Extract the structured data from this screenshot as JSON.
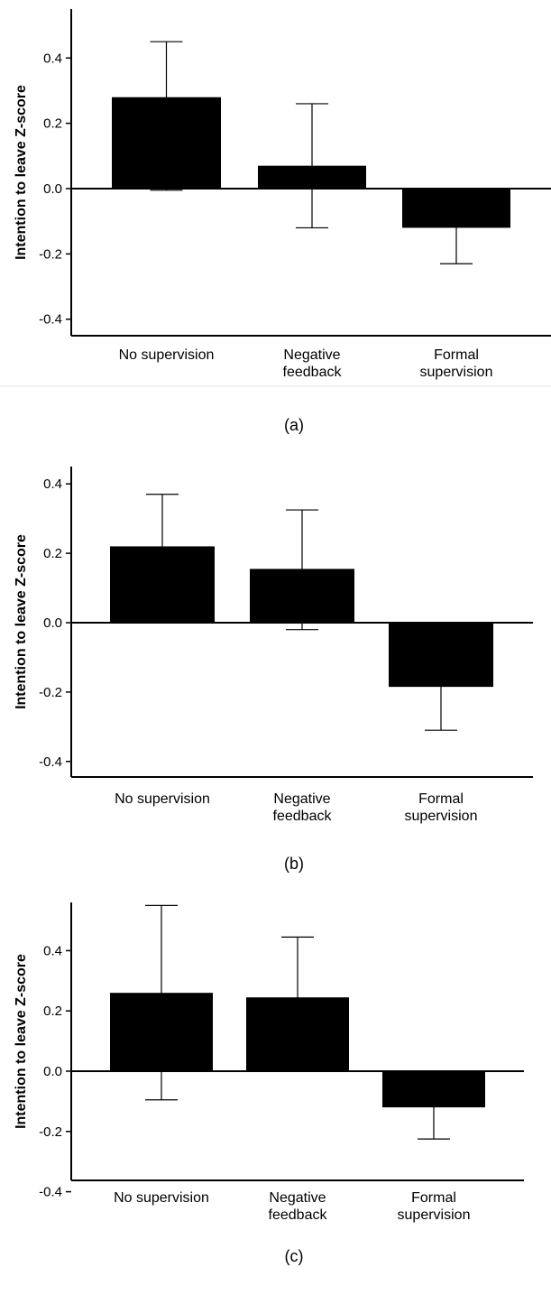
{
  "chart_data": [
    {
      "type": "bar",
      "panel": "(a)",
      "categories": [
        [
          "No supervision"
        ],
        [
          "Negative",
          "feedback"
        ],
        [
          "Formal",
          "supervision"
        ]
      ],
      "values": [
        0.28,
        0.07,
        -0.12
      ],
      "error_low": [
        -0.005,
        -0.12,
        -0.23
      ],
      "error_high": [
        0.45,
        0.26,
        -0.0
      ],
      "ylabel": "Intention to leave Z-score",
      "ylim": [
        -0.45,
        0.55
      ],
      "yticks": [
        0.4,
        0.2,
        0.0,
        -0.2,
        -0.4
      ],
      "ytick_labels": [
        "0.4",
        "0.2",
        "0.0",
        "-0.2",
        "-0.4"
      ],
      "grid": false
    },
    {
      "type": "bar",
      "panel": "(b)",
      "categories": [
        [
          "No supervision"
        ],
        [
          "Negative",
          "feedback"
        ],
        [
          "Formal",
          "supervision"
        ]
      ],
      "values": [
        0.22,
        0.155,
        -0.185
      ],
      "error_low": [
        0.0,
        -0.02,
        -0.31
      ],
      "error_high": [
        0.37,
        0.325,
        0.0
      ],
      "ylabel": "Intention to leave Z-score",
      "ylim": [
        -0.44,
        0.45
      ],
      "yticks": [
        0.4,
        0.2,
        0.0,
        -0.2,
        -0.4
      ],
      "ytick_labels": [
        "0.4",
        "0.2",
        "0.0",
        "-0.2",
        "-0.4"
      ],
      "grid": false
    },
    {
      "type": "bar",
      "panel": "(c)",
      "categories": [
        [
          "No supervision"
        ],
        [
          "Negative",
          "feedback"
        ],
        [
          "Formal",
          "supervision"
        ]
      ],
      "values": [
        0.26,
        0.245,
        -0.12
      ],
      "error_low": [
        -0.095,
        0.0,
        -0.225
      ],
      "error_high": [
        0.55,
        0.445,
        0.0
      ],
      "ylabel": "Intention to leave Z-score",
      "ylim": [
        -0.45,
        0.56
      ],
      "yticks": [
        0.4,
        0.2,
        0.0,
        -0.2,
        -0.4
      ],
      "ytick_labels": [
        "0.4",
        "0.2",
        "0.0",
        "-0.2",
        "-0.4"
      ],
      "grid": false
    }
  ]
}
